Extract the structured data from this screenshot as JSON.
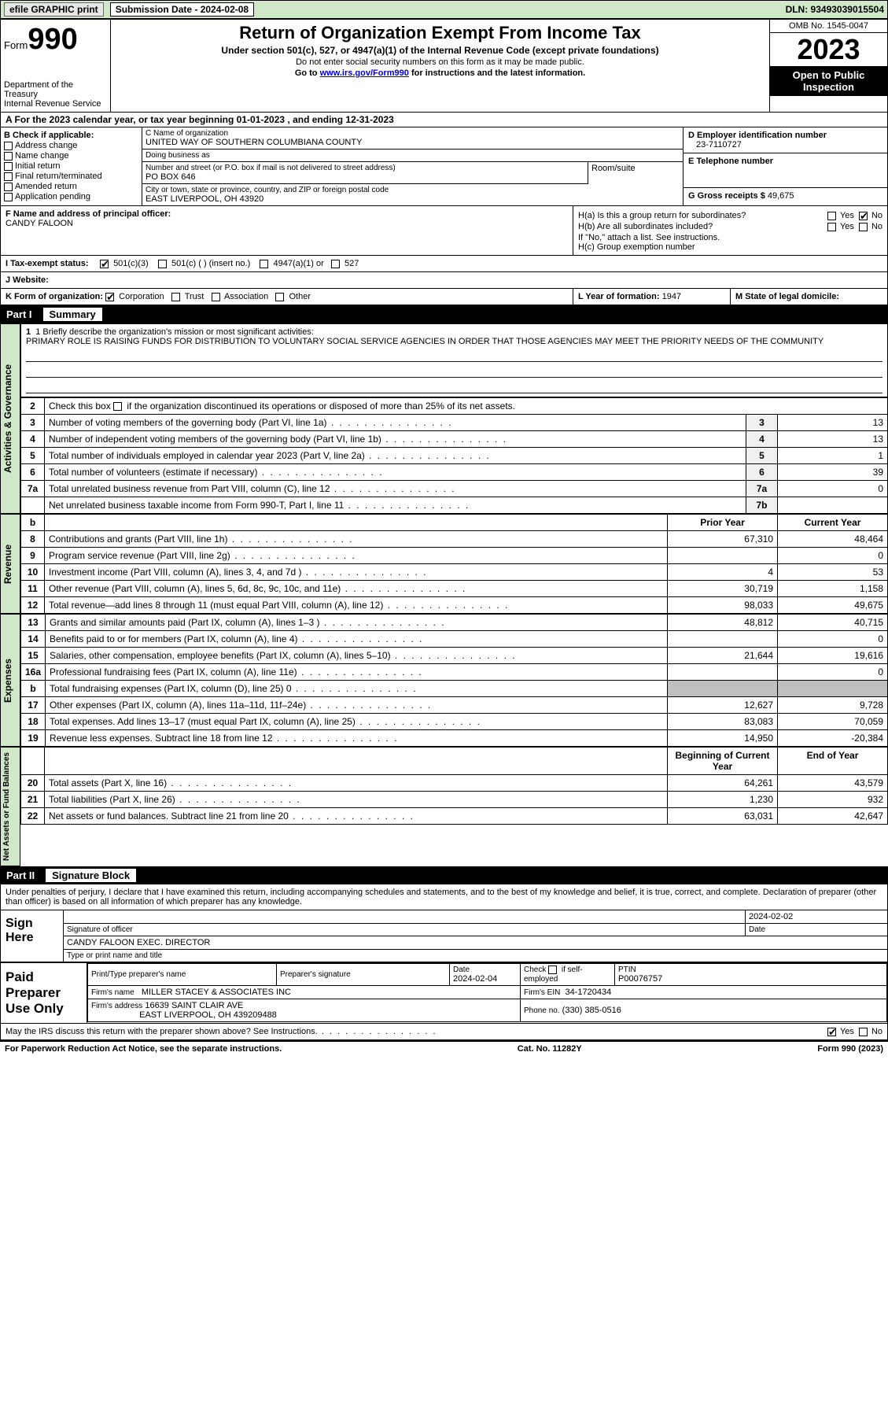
{
  "top_bar": {
    "efile_label": "efile GRAPHIC print",
    "submission_label": "Submission Date - 2024-02-08",
    "dln": "DLN: 93493039015504"
  },
  "header": {
    "form_word": "Form",
    "form_number": "990",
    "dept": "Department of the Treasury\nInternal Revenue Service",
    "title": "Return of Organization Exempt From Income Tax",
    "subtitle": "Under section 501(c), 527, or 4947(a)(1) of the Internal Revenue Code (except private foundations)",
    "note1": "Do not enter social security numbers on this form as it may be made public.",
    "note2_prefix": "Go to ",
    "note2_link": "www.irs.gov/Form990",
    "note2_suffix": " for instructions and the latest information.",
    "omb": "OMB No. 1545-0047",
    "year": "2023",
    "open_public": "Open to Public Inspection"
  },
  "section_a": {
    "prefix": "A For the 2023 calendar year, or tax year beginning ",
    "begin": "01-01-2023",
    "mid": " , and ending ",
    "end": "12-31-2023"
  },
  "box_b": {
    "header": "B Check if applicable:",
    "items": [
      "Address change",
      "Name change",
      "Initial return",
      "Final return/terminated",
      "Amended return",
      "Application pending"
    ]
  },
  "box_c": {
    "name_lbl": "C Name of organization",
    "name": "UNITED WAY OF SOUTHERN COLUMBIANA COUNTY",
    "dba_lbl": "Doing business as",
    "dba": "",
    "addr_lbl": "Number and street (or P.O. box if mail is not delivered to street address)",
    "addr": "PO BOX 646",
    "room_lbl": "Room/suite",
    "room": "",
    "city_lbl": "City or town, state or province, country, and ZIP or foreign postal code",
    "city": "EAST LIVERPOOL, OH  43920"
  },
  "box_d": {
    "lbl": "D Employer identification number",
    "val": "23-7110727"
  },
  "box_e": {
    "lbl": "E Telephone number",
    "val": ""
  },
  "box_g": {
    "lbl": "G Gross receipts $",
    "val": "49,675"
  },
  "box_f": {
    "lbl": "F  Name and address of principal officer:",
    "val": "CANDY FALOON"
  },
  "box_h": {
    "a_lbl": "H(a)  Is this a group return for subordinates?",
    "b_lbl": "H(b)  Are all subordinates included?",
    "b_note": "If \"No,\" attach a list. See instructions.",
    "c_lbl": "H(c)  Group exemption number",
    "yes": "Yes",
    "no": "No"
  },
  "box_i": {
    "lbl": "I  Tax-exempt status:",
    "opts": [
      "501(c)(3)",
      "501(c) (  ) (insert no.)",
      "4947(a)(1) or",
      "527"
    ]
  },
  "box_j": {
    "lbl": "J  Website:",
    "val": ""
  },
  "box_k": {
    "lbl": "K Form of organization:",
    "opts": [
      "Corporation",
      "Trust",
      "Association",
      "Other"
    ]
  },
  "box_l": {
    "lbl": "L Year of formation:",
    "val": "1947"
  },
  "box_m": {
    "lbl": "M State of legal domicile:",
    "val": ""
  },
  "part1": {
    "num": "Part I",
    "title": "Summary"
  },
  "mission": {
    "lbl": "1  Briefly describe the organization's mission or most significant activities:",
    "text": "PRIMARY ROLE IS RAISING FUNDS FOR DISTRIBUTION TO VOLUNTARY SOCIAL SERVICE AGENCIES IN ORDER THAT THOSE AGENCIES MAY MEET THE PRIORITY NEEDS OF THE COMMUNITY"
  },
  "line2": "Check this box      if the organization discontinued its operations or disposed of more than 25% of its net assets.",
  "gov_lines": [
    {
      "n": "3",
      "t": "Number of voting members of the governing body (Part VI, line 1a)",
      "box": "3",
      "v": "13"
    },
    {
      "n": "4",
      "t": "Number of independent voting members of the governing body (Part VI, line 1b)",
      "box": "4",
      "v": "13"
    },
    {
      "n": "5",
      "t": "Total number of individuals employed in calendar year 2023 (Part V, line 2a)",
      "box": "5",
      "v": "1"
    },
    {
      "n": "6",
      "t": "Total number of volunteers (estimate if necessary)",
      "box": "6",
      "v": "39"
    },
    {
      "n": "7a",
      "t": "Total unrelated business revenue from Part VIII, column (C), line 12",
      "box": "7a",
      "v": "0"
    },
    {
      "n": "",
      "t": "Net unrelated business taxable income from Form 990-T, Part I, line 11",
      "box": "7b",
      "v": ""
    }
  ],
  "rev_hdr": {
    "b": "b",
    "prior": "Prior Year",
    "current": "Current Year"
  },
  "rev_lines": [
    {
      "n": "8",
      "t": "Contributions and grants (Part VIII, line 1h)",
      "p": "67,310",
      "c": "48,464"
    },
    {
      "n": "9",
      "t": "Program service revenue (Part VIII, line 2g)",
      "p": "",
      "c": "0"
    },
    {
      "n": "10",
      "t": "Investment income (Part VIII, column (A), lines 3, 4, and 7d )",
      "p": "4",
      "c": "53"
    },
    {
      "n": "11",
      "t": "Other revenue (Part VIII, column (A), lines 5, 6d, 8c, 9c, 10c, and 11e)",
      "p": "30,719",
      "c": "1,158"
    },
    {
      "n": "12",
      "t": "Total revenue—add lines 8 through 11 (must equal Part VIII, column (A), line 12)",
      "p": "98,033",
      "c": "49,675"
    }
  ],
  "exp_lines": [
    {
      "n": "13",
      "t": "Grants and similar amounts paid (Part IX, column (A), lines 1–3 )",
      "p": "48,812",
      "c": "40,715"
    },
    {
      "n": "14",
      "t": "Benefits paid to or for members (Part IX, column (A), line 4)",
      "p": "",
      "c": "0"
    },
    {
      "n": "15",
      "t": "Salaries, other compensation, employee benefits (Part IX, column (A), lines 5–10)",
      "p": "21,644",
      "c": "19,616"
    },
    {
      "n": "16a",
      "t": "Professional fundraising fees (Part IX, column (A), line 11e)",
      "p": "",
      "c": "0"
    },
    {
      "n": "b",
      "t": "Total fundraising expenses (Part IX, column (D), line 25) 0",
      "p": "GREY",
      "c": "GREY"
    },
    {
      "n": "17",
      "t": "Other expenses (Part IX, column (A), lines 11a–11d, 11f–24e)",
      "p": "12,627",
      "c": "9,728"
    },
    {
      "n": "18",
      "t": "Total expenses. Add lines 13–17 (must equal Part IX, column (A), line 25)",
      "p": "83,083",
      "c": "70,059"
    },
    {
      "n": "19",
      "t": "Revenue less expenses. Subtract line 18 from line 12",
      "p": "14,950",
      "c": "-20,384"
    }
  ],
  "net_hdr": {
    "b": "Beginning of Current Year",
    "e": "End of Year"
  },
  "net_lines": [
    {
      "n": "20",
      "t": "Total assets (Part X, line 16)",
      "p": "64,261",
      "c": "43,579"
    },
    {
      "n": "21",
      "t": "Total liabilities (Part X, line 26)",
      "p": "1,230",
      "c": "932"
    },
    {
      "n": "22",
      "t": "Net assets or fund balances. Subtract line 21 from line 20",
      "p": "63,031",
      "c": "42,647"
    }
  ],
  "vlabels": {
    "gov": "Activities & Governance",
    "rev": "Revenue",
    "exp": "Expenses",
    "net": "Net Assets or Fund Balances"
  },
  "part2": {
    "num": "Part II",
    "title": "Signature Block"
  },
  "sig": {
    "perjury": "Under penalties of perjury, I declare that I have examined this return, including accompanying schedules and statements, and to the best of my knowledge and belief, it is true, correct, and complete. Declaration of preparer (other than officer) is based on all information of which preparer has any knowledge.",
    "sign_here": "Sign Here",
    "sig_officer_lbl": "Signature of officer",
    "date_lbl": "Date",
    "date": "2024-02-02",
    "name_title": "CANDY FALOON  EXEC. DIRECTOR",
    "type_lbl": "Type or print name and title"
  },
  "prep": {
    "label": "Paid Preparer Use Only",
    "print_lbl": "Print/Type preparer's name",
    "print_val": "",
    "sig_lbl": "Preparer's signature",
    "date_lbl": "Date",
    "date": "2024-02-04",
    "check_lbl": "Check      if self-employed",
    "ptin_lbl": "PTIN",
    "ptin": "P00076757",
    "firm_name_lbl": "Firm's name",
    "firm_name": "MILLER STACEY & ASSOCIATES INC",
    "firm_ein_lbl": "Firm's EIN",
    "firm_ein": "34-1720434",
    "firm_addr_lbl": "Firm's address",
    "firm_addr1": "16639 SAINT CLAIR AVE",
    "firm_addr2": "EAST LIVERPOOL, OH  439209488",
    "phone_lbl": "Phone no.",
    "phone": "(330) 385-0516"
  },
  "discuss": {
    "lbl": "May the IRS discuss this return with the preparer shown above? See Instructions.",
    "yes": "Yes",
    "no": "No"
  },
  "footer": {
    "left": "For Paperwork Reduction Act Notice, see the separate instructions.",
    "mid": "Cat. No. 11282Y",
    "right": "Form 990 (2023)"
  }
}
